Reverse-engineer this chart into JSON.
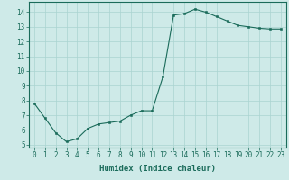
{
  "x": [
    0,
    1,
    2,
    3,
    4,
    5,
    6,
    7,
    8,
    9,
    10,
    11,
    12,
    13,
    14,
    15,
    16,
    17,
    18,
    19,
    20,
    21,
    22,
    23
  ],
  "y": [
    7.8,
    6.8,
    5.8,
    5.2,
    5.4,
    6.1,
    6.4,
    6.5,
    6.6,
    7.0,
    7.3,
    7.3,
    9.6,
    13.8,
    13.9,
    14.2,
    14.0,
    13.7,
    13.4,
    13.1,
    13.0,
    12.9,
    12.85,
    12.85
  ],
  "xlabel": "Humidex (Indice chaleur)",
  "ylim": [
    4.8,
    14.7
  ],
  "xlim": [
    -0.5,
    23.5
  ],
  "yticks": [
    5,
    6,
    7,
    8,
    9,
    10,
    11,
    12,
    13,
    14
  ],
  "xticks": [
    0,
    1,
    2,
    3,
    4,
    5,
    6,
    7,
    8,
    9,
    10,
    11,
    12,
    13,
    14,
    15,
    16,
    17,
    18,
    19,
    20,
    21,
    22,
    23
  ],
  "line_color": "#1a6b5a",
  "marker_color": "#1a6b5a",
  "bg_color": "#ceeae8",
  "grid_color": "#aad4d0",
  "axis_color": "#1a6b5a",
  "tick_label_color": "#1a6b5a",
  "xlabel_color": "#1a6b5a",
  "xlabel_fontsize": 6.5,
  "tick_fontsize": 5.5
}
